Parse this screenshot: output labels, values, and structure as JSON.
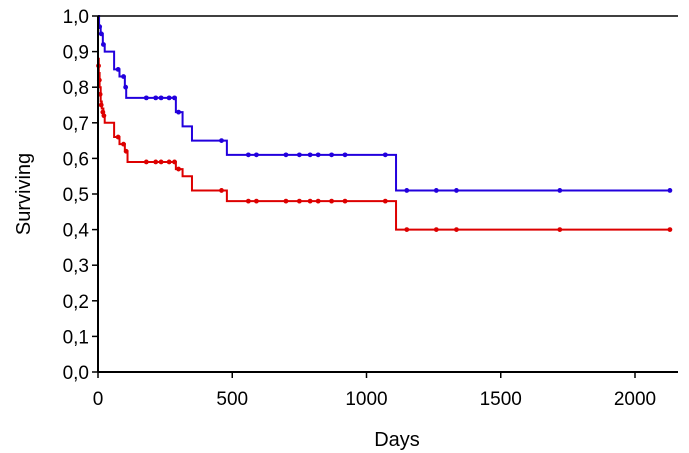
{
  "chart_data": {
    "type": "line",
    "subtype": "kaplan-meier step curve with censor marks",
    "title": "",
    "xlabel": "Days",
    "ylabel": "Surviving",
    "xlim": [
      0,
      2200
    ],
    "ylim": [
      0,
      1
    ],
    "x_ticks": [
      0,
      500,
      1000,
      1500,
      2000
    ],
    "x_tick_labels": [
      "0",
      "500",
      "1000",
      "1500",
      "2000"
    ],
    "y_ticks": [
      0,
      0.1,
      0.2,
      0.3,
      0.4,
      0.5,
      0.6,
      0.7,
      0.8,
      0.9,
      1.0
    ],
    "y_tick_labels": [
      "0,0",
      "0,1",
      "0,2",
      "0,3",
      "0,4",
      "0,5",
      "0,6",
      "0,7",
      "0,8",
      "0,9",
      "1,0"
    ],
    "grid": false,
    "legend": "none",
    "series": [
      {
        "color": "#2200dd",
        "steps": [
          [
            0,
            1.0
          ],
          [
            4,
            0.97
          ],
          [
            10,
            0.95
          ],
          [
            18,
            0.92
          ],
          [
            25,
            0.9
          ],
          [
            60,
            0.85
          ],
          [
            80,
            0.83
          ],
          [
            100,
            0.8
          ],
          [
            105,
            0.77
          ],
          [
            290,
            0.73
          ],
          [
            315,
            0.69
          ],
          [
            350,
            0.65
          ],
          [
            480,
            0.61
          ],
          [
            1110,
            0.51
          ]
        ],
        "end_x": 2130,
        "censored": [
          [
            6,
            0.97
          ],
          [
            12,
            0.95
          ],
          [
            20,
            0.92
          ],
          [
            75,
            0.85
          ],
          [
            95,
            0.83
          ],
          [
            103,
            0.8
          ],
          [
            180,
            0.77
          ],
          [
            215,
            0.77
          ],
          [
            235,
            0.77
          ],
          [
            265,
            0.77
          ],
          [
            285,
            0.77
          ],
          [
            300,
            0.73
          ],
          [
            460,
            0.65
          ],
          [
            560,
            0.61
          ],
          [
            590,
            0.61
          ],
          [
            700,
            0.61
          ],
          [
            750,
            0.61
          ],
          [
            790,
            0.61
          ],
          [
            820,
            0.61
          ],
          [
            870,
            0.61
          ],
          [
            920,
            0.61
          ],
          [
            1070,
            0.61
          ],
          [
            1150,
            0.51
          ],
          [
            1260,
            0.51
          ],
          [
            1335,
            0.51
          ],
          [
            1720,
            0.51
          ],
          [
            2130,
            0.51
          ]
        ]
      },
      {
        "color": "#dd0000",
        "steps": [
          [
            0,
            0.88
          ],
          [
            3,
            0.84
          ],
          [
            6,
            0.8
          ],
          [
            10,
            0.76
          ],
          [
            14,
            0.74
          ],
          [
            20,
            0.72
          ],
          [
            25,
            0.7
          ],
          [
            60,
            0.66
          ],
          [
            80,
            0.64
          ],
          [
            100,
            0.62
          ],
          [
            110,
            0.59
          ],
          [
            290,
            0.57
          ],
          [
            315,
            0.55
          ],
          [
            350,
            0.51
          ],
          [
            480,
            0.48
          ],
          [
            1110,
            0.4
          ]
        ],
        "end_x": 2130,
        "censored": [
          [
            2,
            0.86
          ],
          [
            5,
            0.82
          ],
          [
            8,
            0.78
          ],
          [
            12,
            0.75
          ],
          [
            18,
            0.73
          ],
          [
            22,
            0.72
          ],
          [
            75,
            0.66
          ],
          [
            95,
            0.64
          ],
          [
            105,
            0.62
          ],
          [
            180,
            0.59
          ],
          [
            215,
            0.59
          ],
          [
            235,
            0.59
          ],
          [
            265,
            0.59
          ],
          [
            285,
            0.59
          ],
          [
            300,
            0.57
          ],
          [
            460,
            0.51
          ],
          [
            560,
            0.48
          ],
          [
            590,
            0.48
          ],
          [
            700,
            0.48
          ],
          [
            750,
            0.48
          ],
          [
            790,
            0.48
          ],
          [
            820,
            0.48
          ],
          [
            870,
            0.48
          ],
          [
            920,
            0.48
          ],
          [
            1070,
            0.48
          ],
          [
            1150,
            0.4
          ],
          [
            1260,
            0.4
          ],
          [
            1335,
            0.4
          ],
          [
            1720,
            0.4
          ],
          [
            2130,
            0.4
          ]
        ]
      }
    ]
  }
}
